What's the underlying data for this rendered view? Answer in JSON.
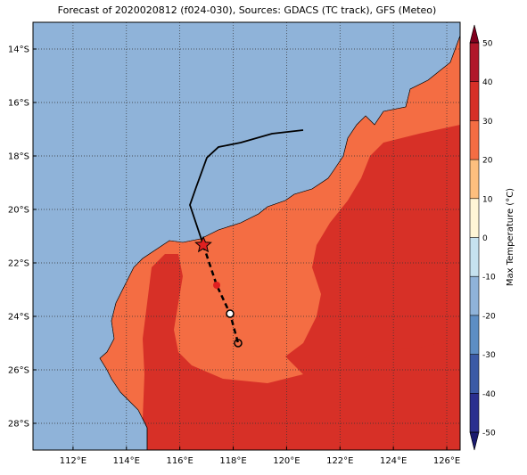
{
  "map": {
    "title": "Forecast of 2020020812 (f024-030), Sources: GDACS (TC track), GFS (Meteo)",
    "xlim": [
      110.5,
      126.5
    ],
    "ylim": [
      -29,
      -13
    ],
    "xticks": [
      {
        "value": 112,
        "label": "112°E"
      },
      {
        "value": 114,
        "label": "114°E"
      },
      {
        "value": 116,
        "label": "116°E"
      },
      {
        "value": 118,
        "label": "118°E"
      },
      {
        "value": 120,
        "label": "120°E"
      },
      {
        "value": 122,
        "label": "122°E"
      },
      {
        "value": 124,
        "label": "124°E"
      },
      {
        "value": 126,
        "label": "126°E"
      }
    ],
    "yticks": [
      {
        "value": -14,
        "label": "14°S"
      },
      {
        "value": -16,
        "label": "16°S"
      },
      {
        "value": -18,
        "label": "18°S"
      },
      {
        "value": -20,
        "label": "20°S"
      },
      {
        "value": -22,
        "label": "22°S"
      },
      {
        "value": -24,
        "label": "24°S"
      },
      {
        "value": -26,
        "label": "26°S"
      },
      {
        "value": -28,
        "label": "28°S"
      }
    ],
    "grid": true,
    "colorbar": {
      "label": "Max Temperature (°C)",
      "ticks": [
        -50,
        -40,
        -30,
        -20,
        -10,
        0,
        10,
        20,
        30,
        40,
        50
      ],
      "colors": [
        "#1a1a6e",
        "#2b2f8f",
        "#3b5aa6",
        "#5d8ec4",
        "#8fb3d9",
        "#c6e2ef",
        "#fff6d6",
        "#fdbf7e",
        "#f46d43",
        "#d73027",
        "#b0172a",
        "#80001e"
      ]
    }
  }
}
